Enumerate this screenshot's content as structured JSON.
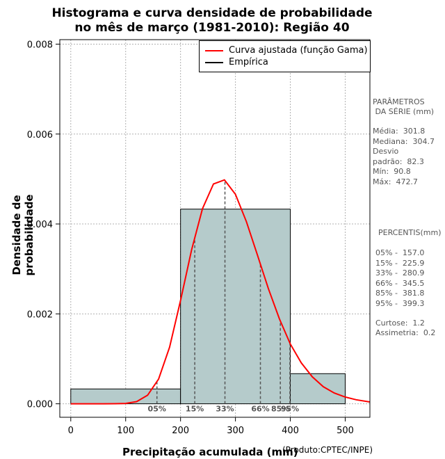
{
  "chart_data": {
    "type": "bar",
    "title": "Histograma e curva densidade de probabilidade",
    "subtitle": "no mês de março (1981-2010): Região 40",
    "xlabel": "Precipitação acumulada (mm)",
    "ylabel": "Densidade de probabilidade",
    "xlim": [
      -20,
      545
    ],
    "ylim": [
      -0.0003,
      0.0081
    ],
    "x_ticks": [
      0,
      100,
      200,
      300,
      400,
      500
    ],
    "x_tick_labels": [
      "0",
      "100",
      "200",
      "300",
      "400",
      "500"
    ],
    "y_ticks": [
      0.0,
      0.002,
      0.004,
      0.006,
      0.008
    ],
    "y_tick_labels": [
      "0.000",
      "0.002",
      "0.004",
      "0.006",
      "0.008"
    ],
    "grid": true,
    "bins": [
      {
        "x0": 0,
        "x1": 200,
        "density": 0.00033
      },
      {
        "x0": 200,
        "x1": 400,
        "density": 0.00433
      },
      {
        "x0": 400,
        "x1": 500,
        "density": 0.00067
      }
    ],
    "fitted_curve": {
      "name": "Curva ajustada (função Gama)",
      "color": "#ff0000",
      "x": [
        0,
        20,
        40,
        60,
        80,
        100,
        120,
        140,
        160,
        180,
        200,
        220,
        240,
        260,
        280,
        300,
        320,
        340,
        360,
        380,
        400,
        420,
        440,
        460,
        480,
        500,
        520,
        545
      ],
      "density": [
        0,
        0,
        0,
        0,
        1e-06,
        8e-06,
        4.8e-05,
        0.00019,
        0.00055,
        0.00126,
        0.0023,
        0.00342,
        0.00434,
        0.00489,
        0.00498,
        0.00466,
        0.00405,
        0.00331,
        0.00256,
        0.00189,
        0.00133,
        0.00091,
        0.0006,
        0.00038,
        0.00024,
        0.00015,
        9e-05,
        4e-05
      ]
    },
    "legend": {
      "position": "top-right",
      "entries": [
        {
          "label": "Curva ajustada (função Gama)",
          "color": "#ff0000"
        },
        {
          "label": "Empírica",
          "color": "#000000"
        }
      ]
    },
    "percentile_markers": [
      {
        "label": "05%",
        "x": 157.0
      },
      {
        "label": "15%",
        "x": 225.9
      },
      {
        "label": "33%",
        "x": 280.9
      },
      {
        "label": "66%",
        "x": 345.5
      },
      {
        "label": "85%",
        "x": 381.8
      },
      {
        "label": "95%",
        "x": 399.3
      }
    ],
    "credit": "(Produto:CPTEC/INPE)"
  },
  "side_panel": {
    "params_title_1": "PARÂMETROS",
    "params_title_2": " DA SÉRIE (mm)",
    "media": "Média:  301.8",
    "mediana": "Mediana:  304.7",
    "desvio_1": "Desvio",
    "desvio_2": "padrão:  82.3",
    "min": "Mín:  90.8",
    "max": "Máx:  472.7",
    "perc_title": "PERCENTIS(mm)",
    "p05": "05% -  157.0",
    "p15": "15% -  225.9",
    "p33": "33% -  280.9",
    "p66": "66% -  345.5",
    "p85": "85% -  381.8",
    "p95": "95% -  399.3",
    "curtose": "Curtose:  1.2",
    "assimetria": "Assimetria:  0.2"
  },
  "colors": {
    "bar_fill": "#b5cbcb",
    "curve": "#ff0000",
    "grid": "#b0b0b0",
    "marker_line": "#555555",
    "marker_text": "#555555"
  }
}
